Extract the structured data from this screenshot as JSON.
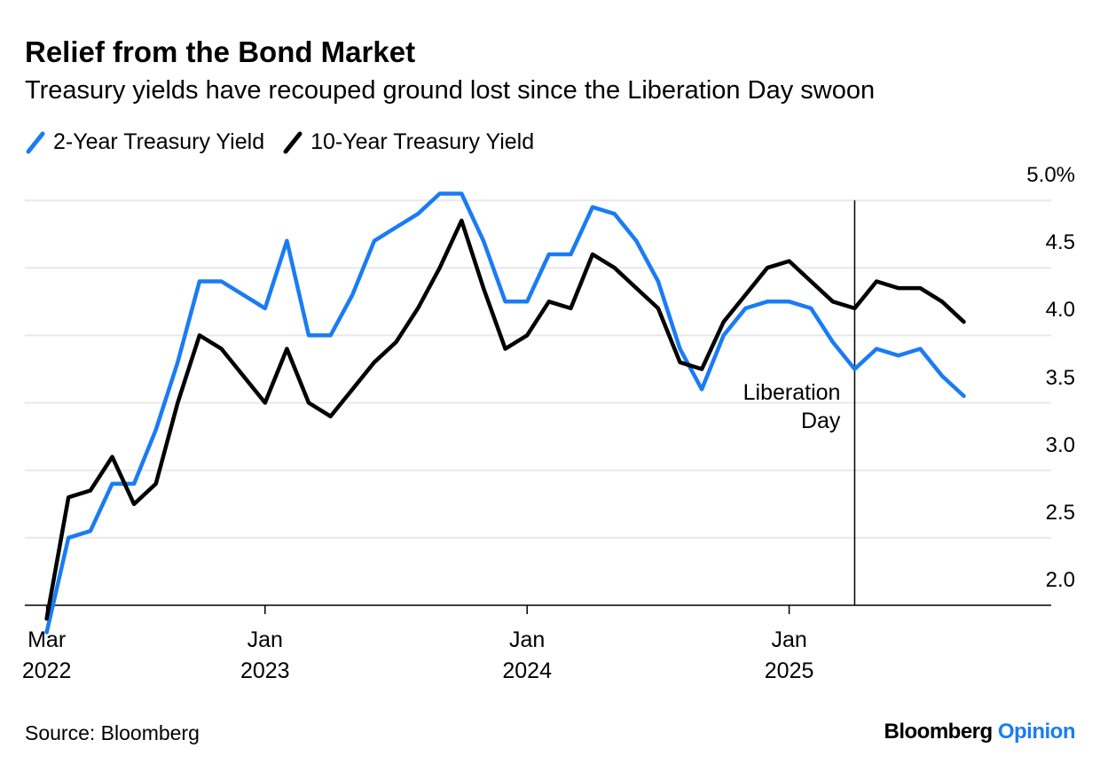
{
  "chart_data": {
    "type": "line",
    "title": "Relief from the Bond Market",
    "subtitle": "Treasury yields have recouped ground lost since the Liberation Day swoon",
    "x": [
      "2022-03",
      "2022-04",
      "2022-05",
      "2022-06",
      "2022-07",
      "2022-08",
      "2022-09",
      "2022-10",
      "2022-11",
      "2022-12",
      "2023-01",
      "2023-02",
      "2023-03",
      "2023-04",
      "2023-05",
      "2023-06",
      "2023-07",
      "2023-08",
      "2023-09",
      "2023-10",
      "2023-11",
      "2023-12",
      "2024-01",
      "2024-02",
      "2024-03",
      "2024-04",
      "2024-05",
      "2024-06",
      "2024-07",
      "2024-08",
      "2024-09",
      "2024-10",
      "2024-11",
      "2024-12",
      "2025-01",
      "2025-02",
      "2025-03",
      "2025-04",
      "2025-05",
      "2025-06",
      "2025-07",
      "2025-08",
      "2025-09"
    ],
    "series": [
      {
        "name": "2-Year Treasury Yield",
        "color": "#1a7cf4",
        "values": [
          1.8,
          2.5,
          2.55,
          2.9,
          2.9,
          3.3,
          3.8,
          4.4,
          4.4,
          4.3,
          4.2,
          4.7,
          4.0,
          4.0,
          4.3,
          4.7,
          4.8,
          4.9,
          5.05,
          5.05,
          4.7,
          4.25,
          4.25,
          4.6,
          4.6,
          4.95,
          4.9,
          4.7,
          4.4,
          3.9,
          3.6,
          4.0,
          4.2,
          4.25,
          4.25,
          4.2,
          3.95,
          3.75,
          3.9,
          3.85,
          3.9,
          3.7,
          3.55
        ]
      },
      {
        "name": "10-Year Treasury Yield",
        "color": "#000000",
        "values": [
          1.9,
          2.8,
          2.85,
          3.1,
          2.75,
          2.9,
          3.5,
          4.0,
          3.9,
          3.7,
          3.5,
          3.9,
          3.5,
          3.4,
          3.6,
          3.8,
          3.95,
          4.2,
          4.5,
          4.85,
          4.35,
          3.9,
          4.0,
          4.25,
          4.2,
          4.6,
          4.5,
          4.35,
          4.2,
          3.8,
          3.75,
          4.1,
          4.3,
          4.5,
          4.55,
          4.4,
          4.25,
          4.2,
          4.4,
          4.35,
          4.35,
          4.25,
          4.1
        ]
      }
    ],
    "xlim": [
      "2022-02",
      "2026-01"
    ],
    "xticks": [
      {
        "value": "2022-03",
        "label": "Mar\n2022"
      },
      {
        "value": "2023-01",
        "label": "Jan\n2023"
      },
      {
        "value": "2024-01",
        "label": "Jan\n2024"
      },
      {
        "value": "2025-01",
        "label": "Jan\n2025"
      }
    ],
    "ylim": [
      2.0,
      5.25
    ],
    "yticks": [
      {
        "value": 2,
        "label": "2.0"
      },
      2.5,
      {
        "value": 3,
        "label": "3.0"
      },
      3.5,
      {
        "value": 4,
        "label": "4.0"
      },
      4.5,
      {
        "value": 5,
        "label": "5.0%"
      }
    ],
    "grid": true,
    "legend": "top-left",
    "annotations": [
      {
        "text": "Liberation\nDay",
        "x": "2025-04"
      }
    ],
    "source": "Source: Bloomberg",
    "brand": [
      "Bloomberg",
      "Opinion"
    ]
  }
}
